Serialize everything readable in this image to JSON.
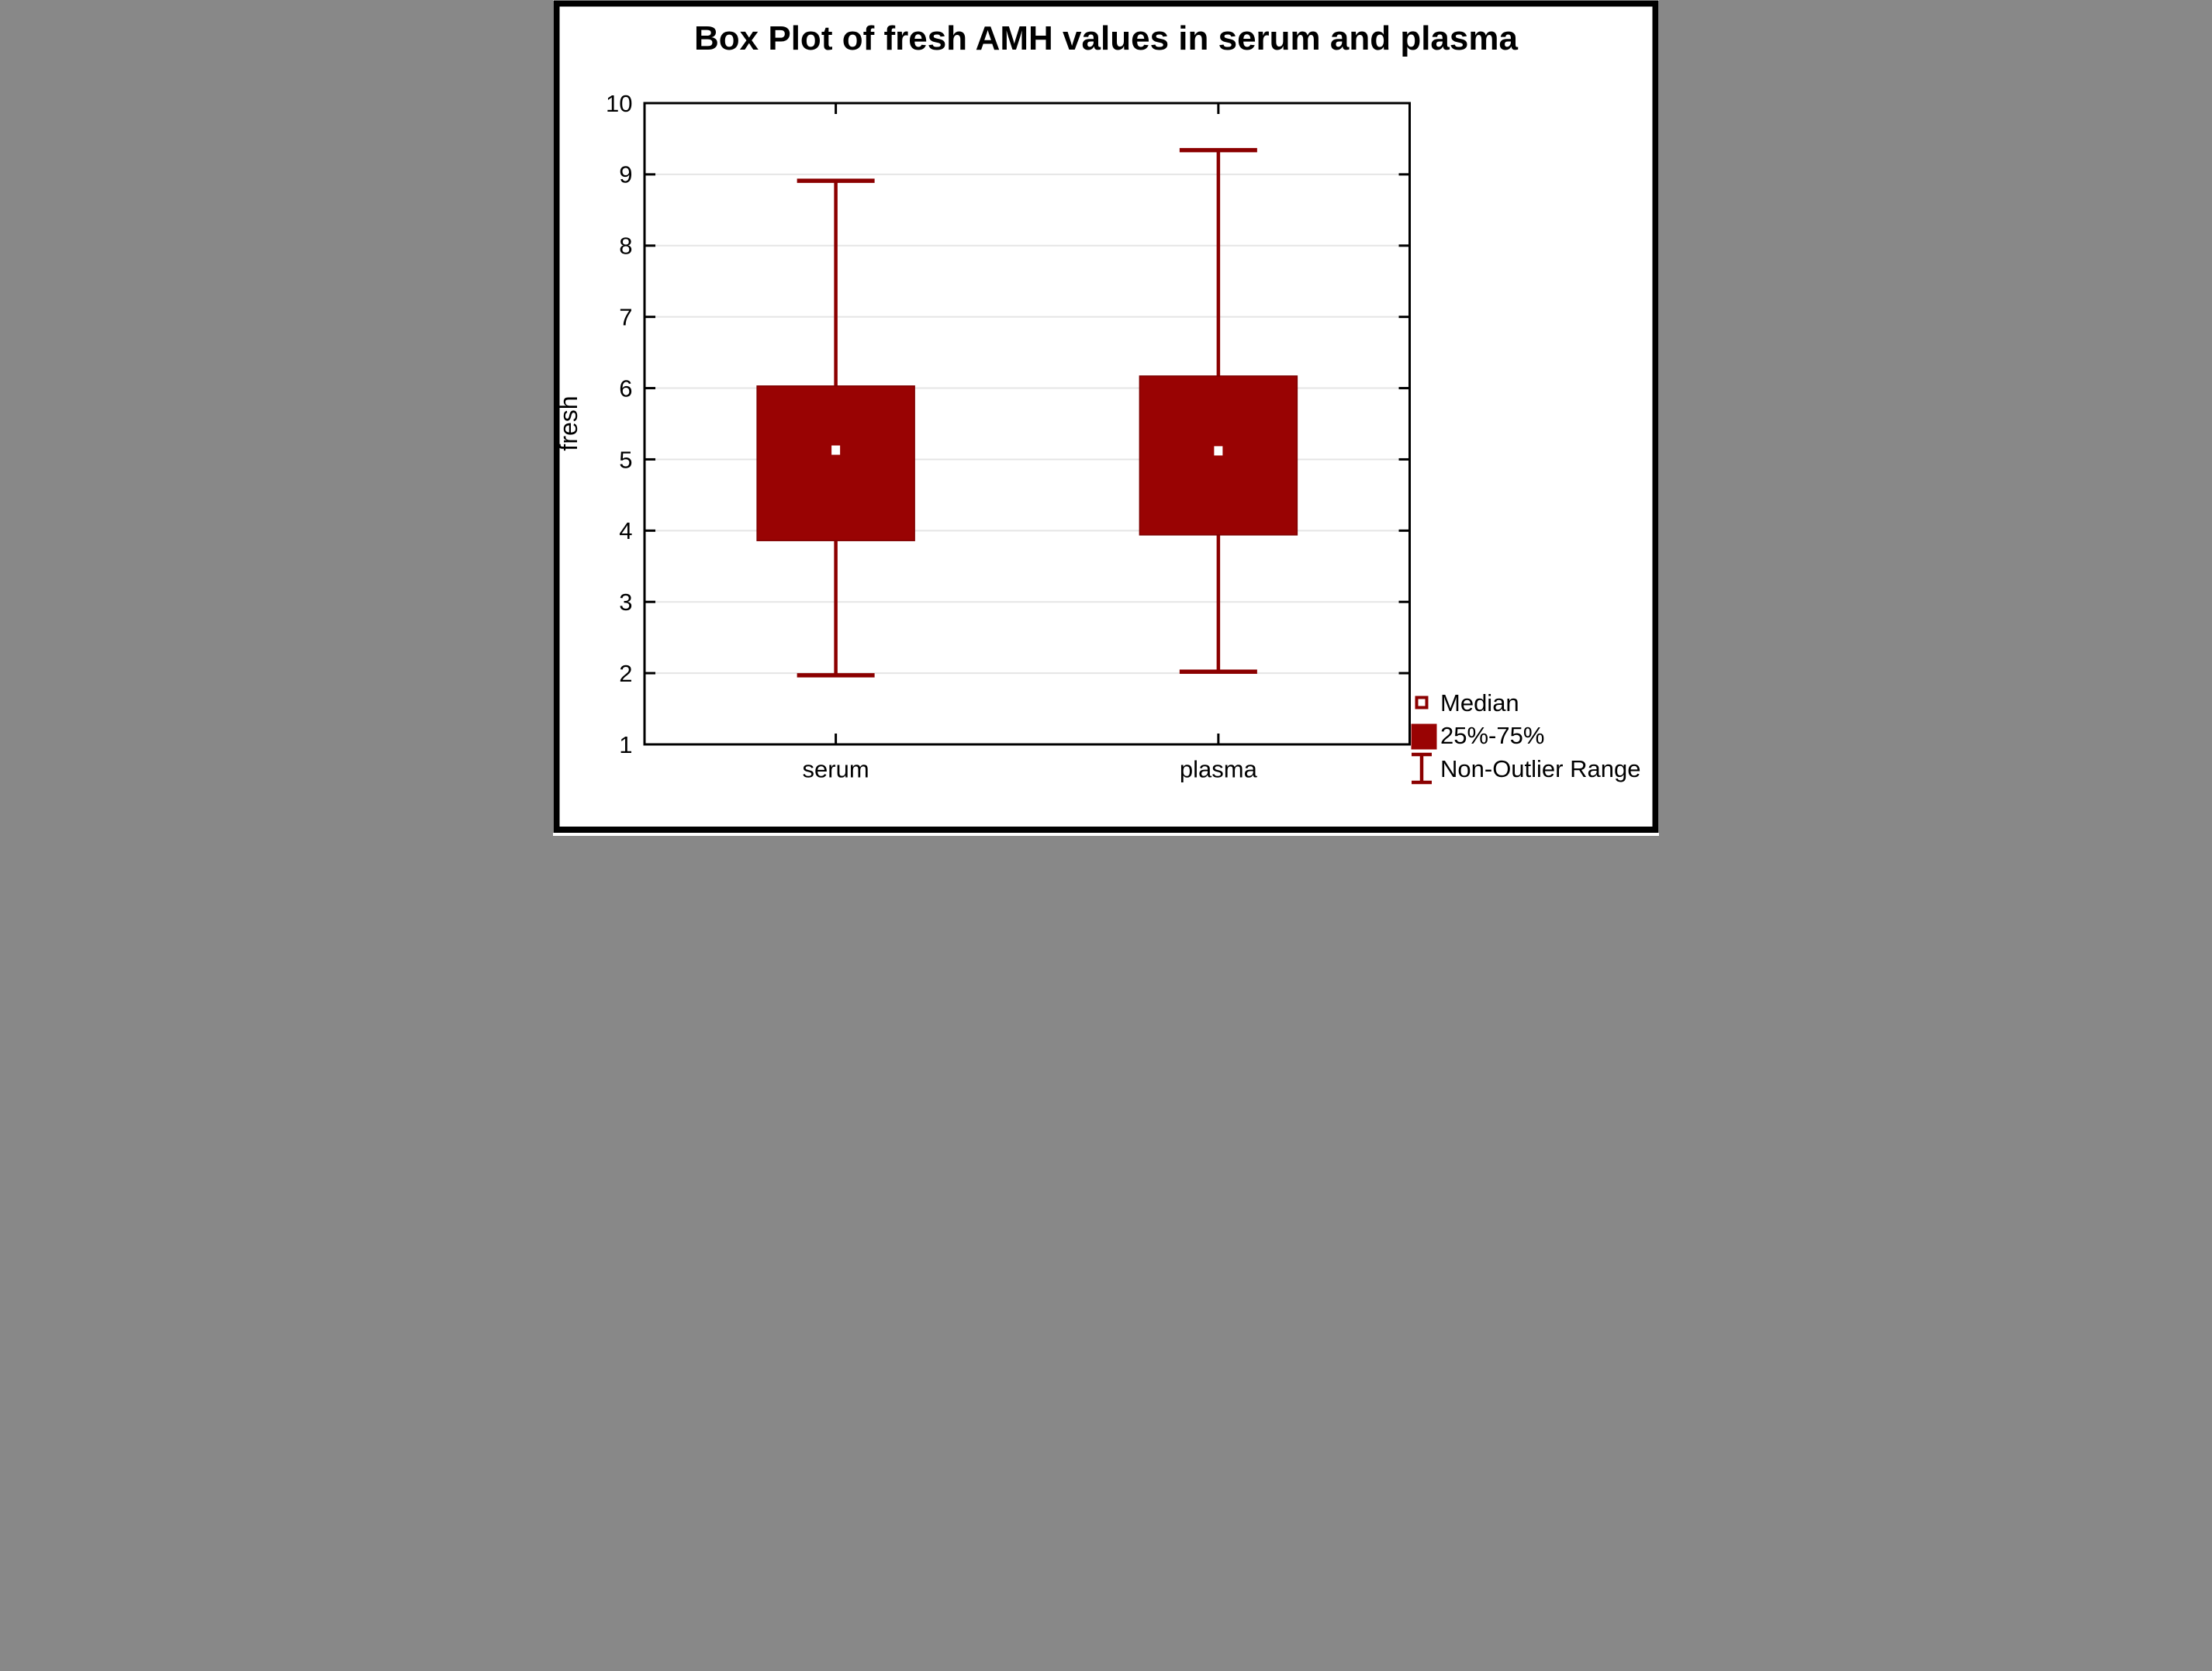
{
  "chart_data": {
    "type": "box",
    "title": "Box Plot of fresh AMH values in serum and plasma",
    "ylabel": "fresh",
    "categories": [
      "serum",
      "plasma"
    ],
    "ylim": [
      1,
      10
    ],
    "yticks": [
      1,
      2,
      3,
      4,
      5,
      6,
      7,
      8,
      9,
      10
    ],
    "ytick_labels": [
      "1",
      "2",
      "3",
      "4",
      "5",
      "6",
      "7",
      "8",
      "9",
      "10"
    ],
    "grid": "horizontal",
    "legend_position": "bottom-right",
    "series": [
      {
        "name": "serum",
        "median": 5.13,
        "q1": 3.86,
        "q3": 6.03,
        "whisker_low": 1.97,
        "whisker_high": 8.91
      },
      {
        "name": "plasma",
        "median": 5.12,
        "q1": 3.94,
        "q3": 6.17,
        "whisker_low": 2.02,
        "whisker_high": 9.34
      }
    ],
    "legend": [
      {
        "marker": "median-square-icon",
        "label": "Median"
      },
      {
        "marker": "box-fill-icon",
        "label": "25%-75%"
      },
      {
        "marker": "whisker-ibeam-icon",
        "label": "Non-Outlier Range"
      }
    ],
    "colors": {
      "box_fill": "#990303",
      "box_edge": "#7d0000",
      "whisker": "#8B0000",
      "median_marker_fill": "#FFFFFF",
      "grid": "#E5E5E5",
      "axis": "#000000",
      "frame": "#000000",
      "background": "#FFFFFF",
      "text": "#000000"
    }
  }
}
